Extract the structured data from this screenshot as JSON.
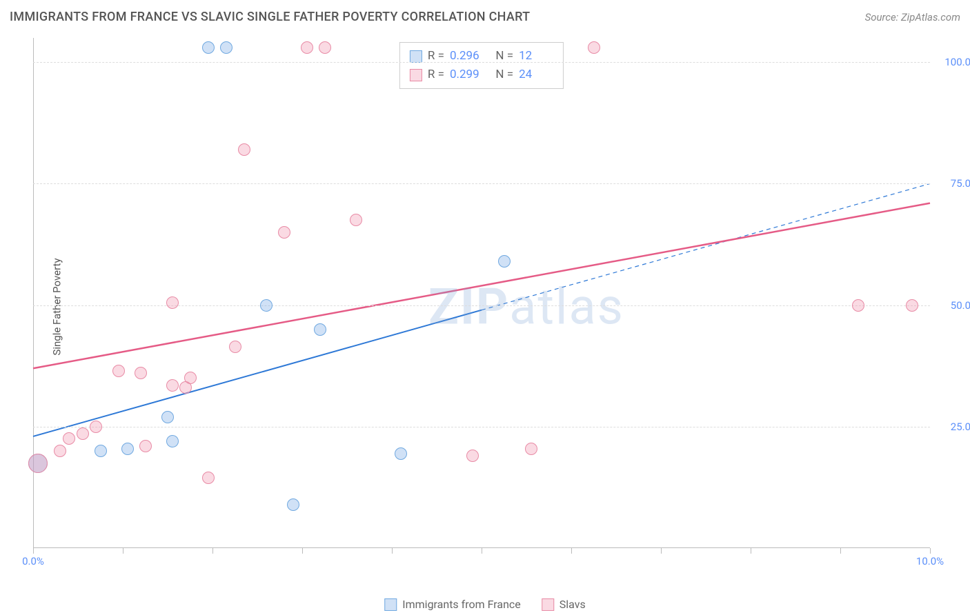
{
  "title": "IMMIGRANTS FROM FRANCE VS SLAVIC SINGLE FATHER POVERTY CORRELATION CHART",
  "source": "Source: ZipAtlas.com",
  "watermark_bold": "ZIP",
  "watermark_rest": "atlas",
  "chart": {
    "type": "scatter",
    "xlim": [
      0,
      10
    ],
    "ylim": [
      0,
      105
    ],
    "x_ticks": [
      0,
      1,
      2,
      3,
      4,
      5,
      6,
      7,
      8,
      9,
      10
    ],
    "x_tick_labels_shown": {
      "0": "0.0%",
      "10": "10.0%"
    },
    "y_gridlines": [
      25,
      50,
      75,
      100
    ],
    "y_tick_labels": {
      "25": "25.0%",
      "50": "50.0%",
      "75": "75.0%",
      "100": "100.0%"
    },
    "y_axis_label": "Single Father Poverty",
    "background_color": "#ffffff",
    "grid_color": "#dddddd",
    "axis_color": "#bbbbbb",
    "tick_label_color": "#5b8ff9",
    "marker_radius": 9,
    "marker_stroke_width": 1.5,
    "series": [
      {
        "name": "Immigrants from France",
        "fill": "rgba(120,170,230,0.35)",
        "stroke": "#6fa8e0",
        "r_value": "0.296",
        "n_value": "12",
        "points": [
          {
            "x": 0.05,
            "y": 17.5,
            "r": 14
          },
          {
            "x": 0.75,
            "y": 20.0
          },
          {
            "x": 1.05,
            "y": 20.5
          },
          {
            "x": 1.5,
            "y": 27.0
          },
          {
            "x": 1.55,
            "y": 22.0
          },
          {
            "x": 1.95,
            "y": 103.0
          },
          {
            "x": 2.15,
            "y": 103.0
          },
          {
            "x": 2.6,
            "y": 50.0
          },
          {
            "x": 2.9,
            "y": 9.0
          },
          {
            "x": 3.2,
            "y": 45.0
          },
          {
            "x": 4.1,
            "y": 19.5
          },
          {
            "x": 5.25,
            "y": 59.0
          }
        ],
        "trend": {
          "x1": 0.0,
          "y1": 23.0,
          "x2": 5.0,
          "y2": 49.0,
          "x2_ext": 10.0,
          "y2_ext": 75.0,
          "color": "#2d78d6",
          "width": 2
        }
      },
      {
        "name": "Slavs",
        "fill": "rgba(240,150,175,0.35)",
        "stroke": "#e88aa5",
        "r_value": "0.299",
        "n_value": "24",
        "points": [
          {
            "x": 0.05,
            "y": 17.5,
            "r": 14
          },
          {
            "x": 0.3,
            "y": 20.0
          },
          {
            "x": 0.4,
            "y": 22.5
          },
          {
            "x": 0.55,
            "y": 23.5
          },
          {
            "x": 0.7,
            "y": 25.0
          },
          {
            "x": 0.95,
            "y": 36.5
          },
          {
            "x": 1.2,
            "y": 36.0
          },
          {
            "x": 1.25,
            "y": 21.0
          },
          {
            "x": 1.55,
            "y": 33.5
          },
          {
            "x": 1.55,
            "y": 50.5
          },
          {
            "x": 1.7,
            "y": 33.0
          },
          {
            "x": 1.75,
            "y": 35.0
          },
          {
            "x": 1.95,
            "y": 14.5
          },
          {
            "x": 2.25,
            "y": 41.5
          },
          {
            "x": 2.35,
            "y": 82.0
          },
          {
            "x": 2.8,
            "y": 65.0
          },
          {
            "x": 3.05,
            "y": 103.0
          },
          {
            "x": 3.25,
            "y": 103.0
          },
          {
            "x": 3.6,
            "y": 67.5
          },
          {
            "x": 4.9,
            "y": 19.0
          },
          {
            "x": 5.55,
            "y": 20.5
          },
          {
            "x": 6.25,
            "y": 103.0
          },
          {
            "x": 9.2,
            "y": 50.0
          },
          {
            "x": 9.8,
            "y": 50.0
          }
        ],
        "trend": {
          "x1": 0.0,
          "y1": 37.0,
          "x2": 10.0,
          "y2": 71.0,
          "color": "#e55b86",
          "width": 2.5
        }
      }
    ]
  },
  "bottom_legend": [
    {
      "label": "Immigrants from France",
      "fill": "rgba(120,170,230,0.35)",
      "stroke": "#6fa8e0"
    },
    {
      "label": "Slavs",
      "fill": "rgba(240,150,175,0.35)",
      "stroke": "#e88aa5"
    }
  ]
}
